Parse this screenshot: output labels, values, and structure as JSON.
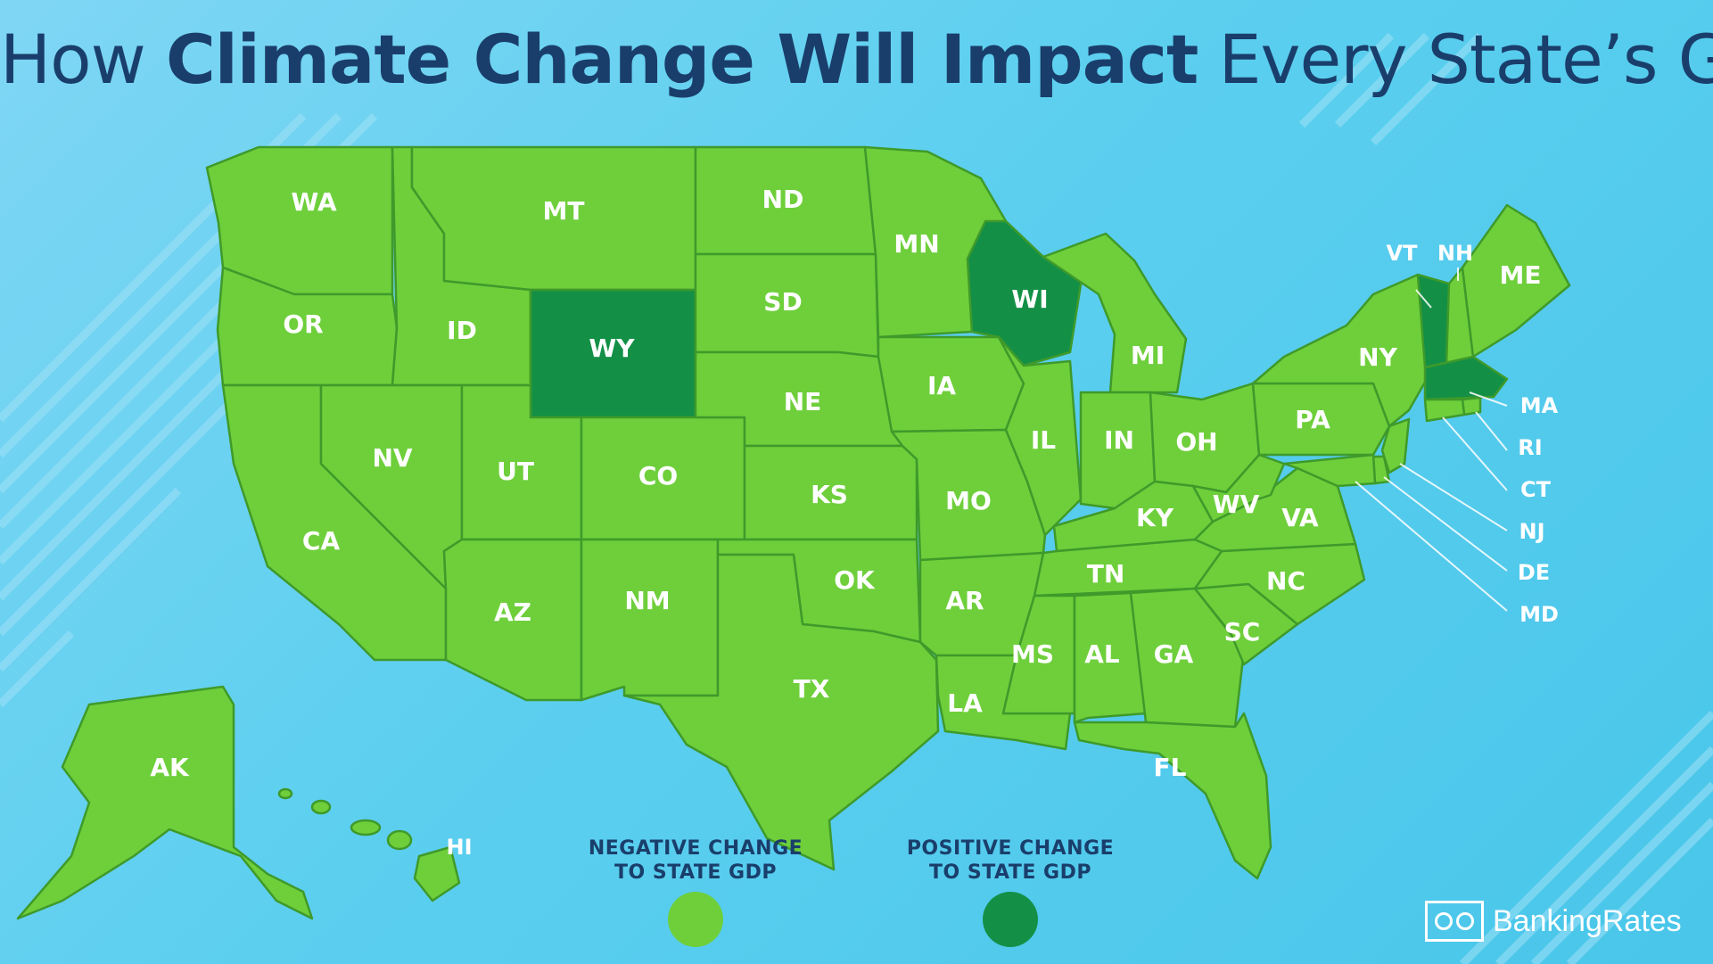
{
  "title": {
    "lead": "How ",
    "emphasis": "Climate Change Will Impact",
    "tail": " Every State’s GDP"
  },
  "colors": {
    "negative": "#6ecf3b",
    "positive": "#139046",
    "title": "#1a3e6b",
    "ocean": "#5ccfef"
  },
  "legend": {
    "negative": {
      "line1": "NEGATIVE CHANGE",
      "line2": "TO STATE GDP",
      "color": "#6ecf3b"
    },
    "positive": {
      "line1": "POSITIVE CHANGE",
      "line2": "TO STATE GDP",
      "color": "#139046"
    }
  },
  "brand": {
    "name": "BankingRates"
  },
  "states": [
    {
      "code": "WA",
      "impact": "negative"
    },
    {
      "code": "OR",
      "impact": "negative"
    },
    {
      "code": "CA",
      "impact": "negative"
    },
    {
      "code": "ID",
      "impact": "negative"
    },
    {
      "code": "NV",
      "impact": "negative"
    },
    {
      "code": "MT",
      "impact": "negative"
    },
    {
      "code": "WY",
      "impact": "positive"
    },
    {
      "code": "UT",
      "impact": "negative"
    },
    {
      "code": "AZ",
      "impact": "negative"
    },
    {
      "code": "CO",
      "impact": "negative"
    },
    {
      "code": "NM",
      "impact": "negative"
    },
    {
      "code": "ND",
      "impact": "negative"
    },
    {
      "code": "SD",
      "impact": "negative"
    },
    {
      "code": "NE",
      "impact": "negative"
    },
    {
      "code": "KS",
      "impact": "negative"
    },
    {
      "code": "OK",
      "impact": "negative"
    },
    {
      "code": "TX",
      "impact": "negative"
    },
    {
      "code": "MN",
      "impact": "negative"
    },
    {
      "code": "IA",
      "impact": "negative"
    },
    {
      "code": "MO",
      "impact": "negative"
    },
    {
      "code": "AR",
      "impact": "negative"
    },
    {
      "code": "LA",
      "impact": "negative"
    },
    {
      "code": "WI",
      "impact": "positive"
    },
    {
      "code": "IL",
      "impact": "negative"
    },
    {
      "code": "MI",
      "impact": "negative"
    },
    {
      "code": "IN",
      "impact": "negative"
    },
    {
      "code": "OH",
      "impact": "negative"
    },
    {
      "code": "KY",
      "impact": "negative"
    },
    {
      "code": "TN",
      "impact": "negative"
    },
    {
      "code": "MS",
      "impact": "negative"
    },
    {
      "code": "AL",
      "impact": "negative"
    },
    {
      "code": "GA",
      "impact": "negative"
    },
    {
      "code": "FL",
      "impact": "negative"
    },
    {
      "code": "SC",
      "impact": "negative"
    },
    {
      "code": "NC",
      "impact": "negative"
    },
    {
      "code": "VA",
      "impact": "negative"
    },
    {
      "code": "WV",
      "impact": "negative"
    },
    {
      "code": "PA",
      "impact": "negative"
    },
    {
      "code": "NY",
      "impact": "negative"
    },
    {
      "code": "VT",
      "impact": "positive"
    },
    {
      "code": "NH",
      "impact": "negative"
    },
    {
      "code": "ME",
      "impact": "negative"
    },
    {
      "code": "MA",
      "impact": "positive"
    },
    {
      "code": "RI",
      "impact": "negative"
    },
    {
      "code": "CT",
      "impact": "negative"
    },
    {
      "code": "NJ",
      "impact": "negative"
    },
    {
      "code": "DE",
      "impact": "negative"
    },
    {
      "code": "MD",
      "impact": "negative"
    },
    {
      "code": "AK",
      "impact": "negative"
    },
    {
      "code": "HI",
      "impact": "negative"
    }
  ]
}
